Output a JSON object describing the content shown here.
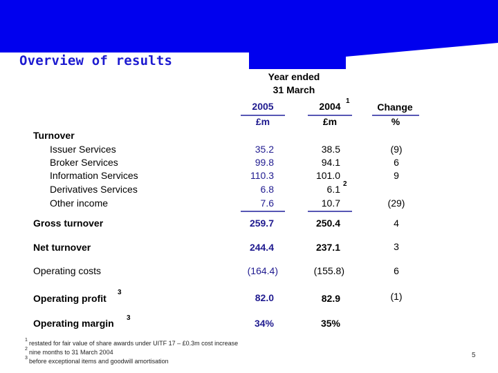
{
  "slide": {
    "title": "Overview of results",
    "page_number": "5"
  },
  "header": {
    "year_ended": "Year ended",
    "date": "31 March",
    "col_2005": "2005",
    "col_2004": "2004",
    "col_2004_note": "1",
    "col_change": "Change",
    "unit_2005": "£m",
    "unit_2004": "£m",
    "unit_change": "%"
  },
  "section_turnover": "Turnover",
  "rows": [
    {
      "label": "Issuer Services",
      "v2005": "35.2",
      "v2004": "38.5",
      "change": "(9)"
    },
    {
      "label": "Broker Services",
      "v2005": "99.8",
      "v2004": "94.1",
      "change": "6"
    },
    {
      "label": "Information Services",
      "v2005": "110.3",
      "v2004": "101.0",
      "change": "9"
    },
    {
      "label": "Derivatives Services",
      "v2005": "6.8",
      "v2004": "6.1",
      "v2004_note": "2",
      "change": ""
    },
    {
      "label": "Other income",
      "v2005": "7.6",
      "v2004": "10.7",
      "change": "(29)"
    }
  ],
  "totals": [
    {
      "label": "Gross turnover",
      "v2005": "259.7",
      "v2004": "250.4",
      "change": "4"
    },
    {
      "label": "Net turnover",
      "v2005": "244.4",
      "v2004": "237.1",
      "change": "3"
    },
    {
      "label": "Operating costs",
      "v2005": "(164.4)",
      "v2004": "(155.8)",
      "change": "6"
    },
    {
      "label": "Operating profit",
      "note": "3",
      "v2005": "82.0",
      "v2004": "82.9",
      "change": "(1)"
    },
    {
      "label": "Operating margin",
      "note": "3",
      "v2005": "34%",
      "v2004": "35%",
      "change": ""
    }
  ],
  "footnotes": [
    {
      "num": "1",
      "text": "restated for fair value of share awards under UITF 17 – £0.3m cost increase"
    },
    {
      "num": "2",
      "text": "nine months to 31 March 2004"
    },
    {
      "num": "3",
      "text": "before exceptional items and goodwill amortisation"
    }
  ],
  "colors": {
    "banner": "#0000ee",
    "title": "#1c1ad0",
    "figures": "#1f1a8f",
    "rule": "#5656b4"
  }
}
